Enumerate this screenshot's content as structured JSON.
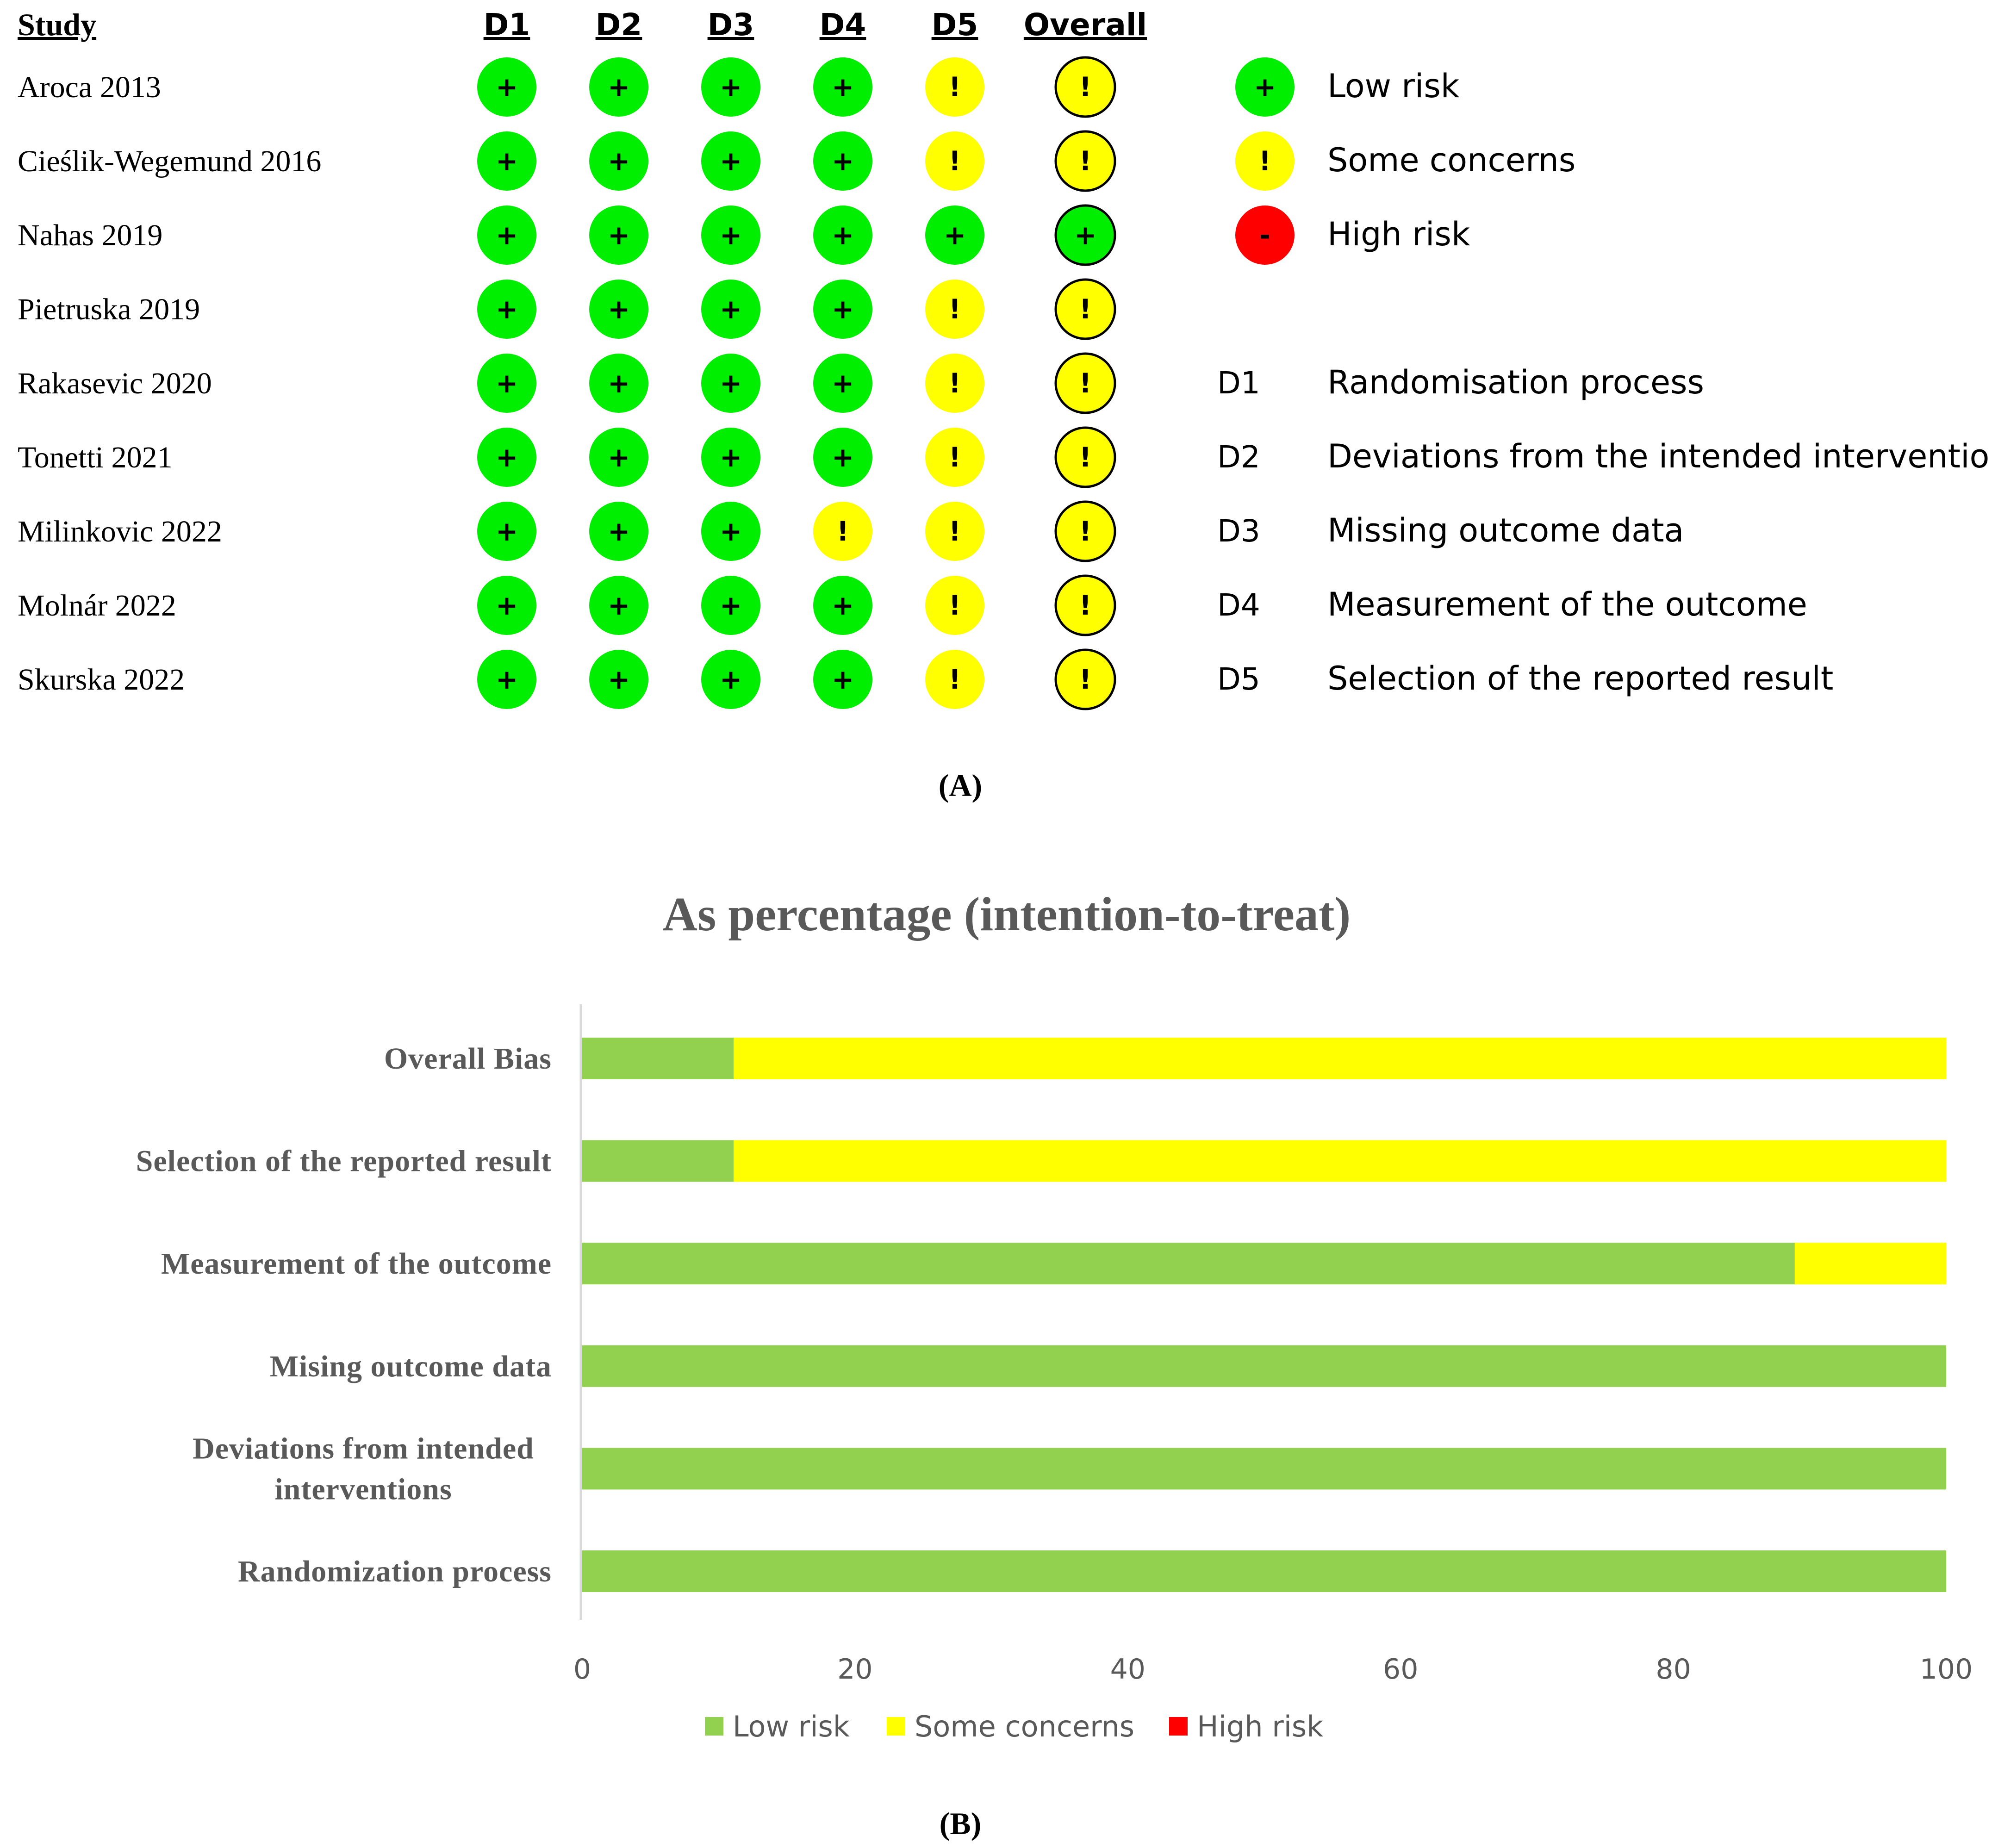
{
  "panel_a": {
    "study_header": "Study",
    "domain_headers": [
      "D1",
      "D2",
      "D3",
      "D4",
      "D5"
    ],
    "overall_header": "Overall",
    "studies": [
      {
        "name": "Aroca 2013",
        "judgements": [
          "low",
          "low",
          "low",
          "low",
          "some"
        ],
        "overall": "some"
      },
      {
        "name": "Cieślik-Wegemund 2016",
        "judgements": [
          "low",
          "low",
          "low",
          "low",
          "some"
        ],
        "overall": "some"
      },
      {
        "name": "Nahas 2019",
        "judgements": [
          "low",
          "low",
          "low",
          "low",
          "low"
        ],
        "overall": "low"
      },
      {
        "name": "Pietruska 2019",
        "judgements": [
          "low",
          "low",
          "low",
          "low",
          "some"
        ],
        "overall": "some"
      },
      {
        "name": "Rakasevic 2020",
        "judgements": [
          "low",
          "low",
          "low",
          "low",
          "some"
        ],
        "overall": "some"
      },
      {
        "name": "Tonetti 2021",
        "judgements": [
          "low",
          "low",
          "low",
          "low",
          "some"
        ],
        "overall": "some"
      },
      {
        "name": "Milinkovic 2022",
        "judgements": [
          "low",
          "low",
          "low",
          "some",
          "some"
        ],
        "overall": "some"
      },
      {
        "name": "Molnár 2022",
        "judgements": [
          "low",
          "low",
          "low",
          "low",
          "some"
        ],
        "overall": "some"
      },
      {
        "name": "Skurska 2022",
        "judgements": [
          "low",
          "low",
          "low",
          "low",
          "some"
        ],
        "overall": "some"
      }
    ],
    "judgement_legend": [
      {
        "key": "low",
        "symbol": "+",
        "label": "Low risk",
        "color": "#00ee00"
      },
      {
        "key": "some",
        "symbol": "!",
        "label": "Some concerns",
        "color": "#ffff00"
      },
      {
        "key": "high",
        "symbol": "-",
        "label": "High risk",
        "color": "#ff0000"
      }
    ],
    "domain_legend": [
      {
        "code": "D1",
        "label": "Randomisation process"
      },
      {
        "code": "D2",
        "label": "Deviations from the intended interventions"
      },
      {
        "code": "D3",
        "label": "Missing outcome data"
      },
      {
        "code": "D4",
        "label": "Measurement of the outcome"
      },
      {
        "code": "D5",
        "label": "Selection of the reported result"
      }
    ],
    "caption": "(A)"
  },
  "chart_data": {
    "type": "bar",
    "orientation": "horizontal",
    "stacked": true,
    "title": "As percentage (intention-to-treat)",
    "categories": [
      "Overall Bias",
      "Selection of the reported result",
      "Measurement of the outcome",
      "Mising outcome data",
      "Deviations from intended interventions",
      "Randomization process"
    ],
    "category_lines": [
      [
        "Overall Bias"
      ],
      [
        "Selection of the reported result"
      ],
      [
        "Measurement of the outcome"
      ],
      [
        "Mising outcome data"
      ],
      [
        "Deviations from intended",
        "interventions"
      ],
      [
        "Randomization process"
      ]
    ],
    "series": [
      {
        "name": "Low risk",
        "color": "#92d050",
        "values": [
          11.1,
          11.1,
          88.9,
          100,
          100,
          100
        ]
      },
      {
        "name": "Some concerns",
        "color": "#ffff00",
        "values": [
          88.9,
          88.9,
          11.1,
          0,
          0,
          0
        ]
      },
      {
        "name": "High risk",
        "color": "#ff0000",
        "values": [
          0,
          0,
          0,
          0,
          0,
          0
        ]
      }
    ],
    "xlim": [
      0,
      100
    ],
    "xticks": [
      "0",
      "20",
      "40",
      "60",
      "80",
      "100"
    ],
    "legend_position": "bottom",
    "caption": "(B)"
  }
}
